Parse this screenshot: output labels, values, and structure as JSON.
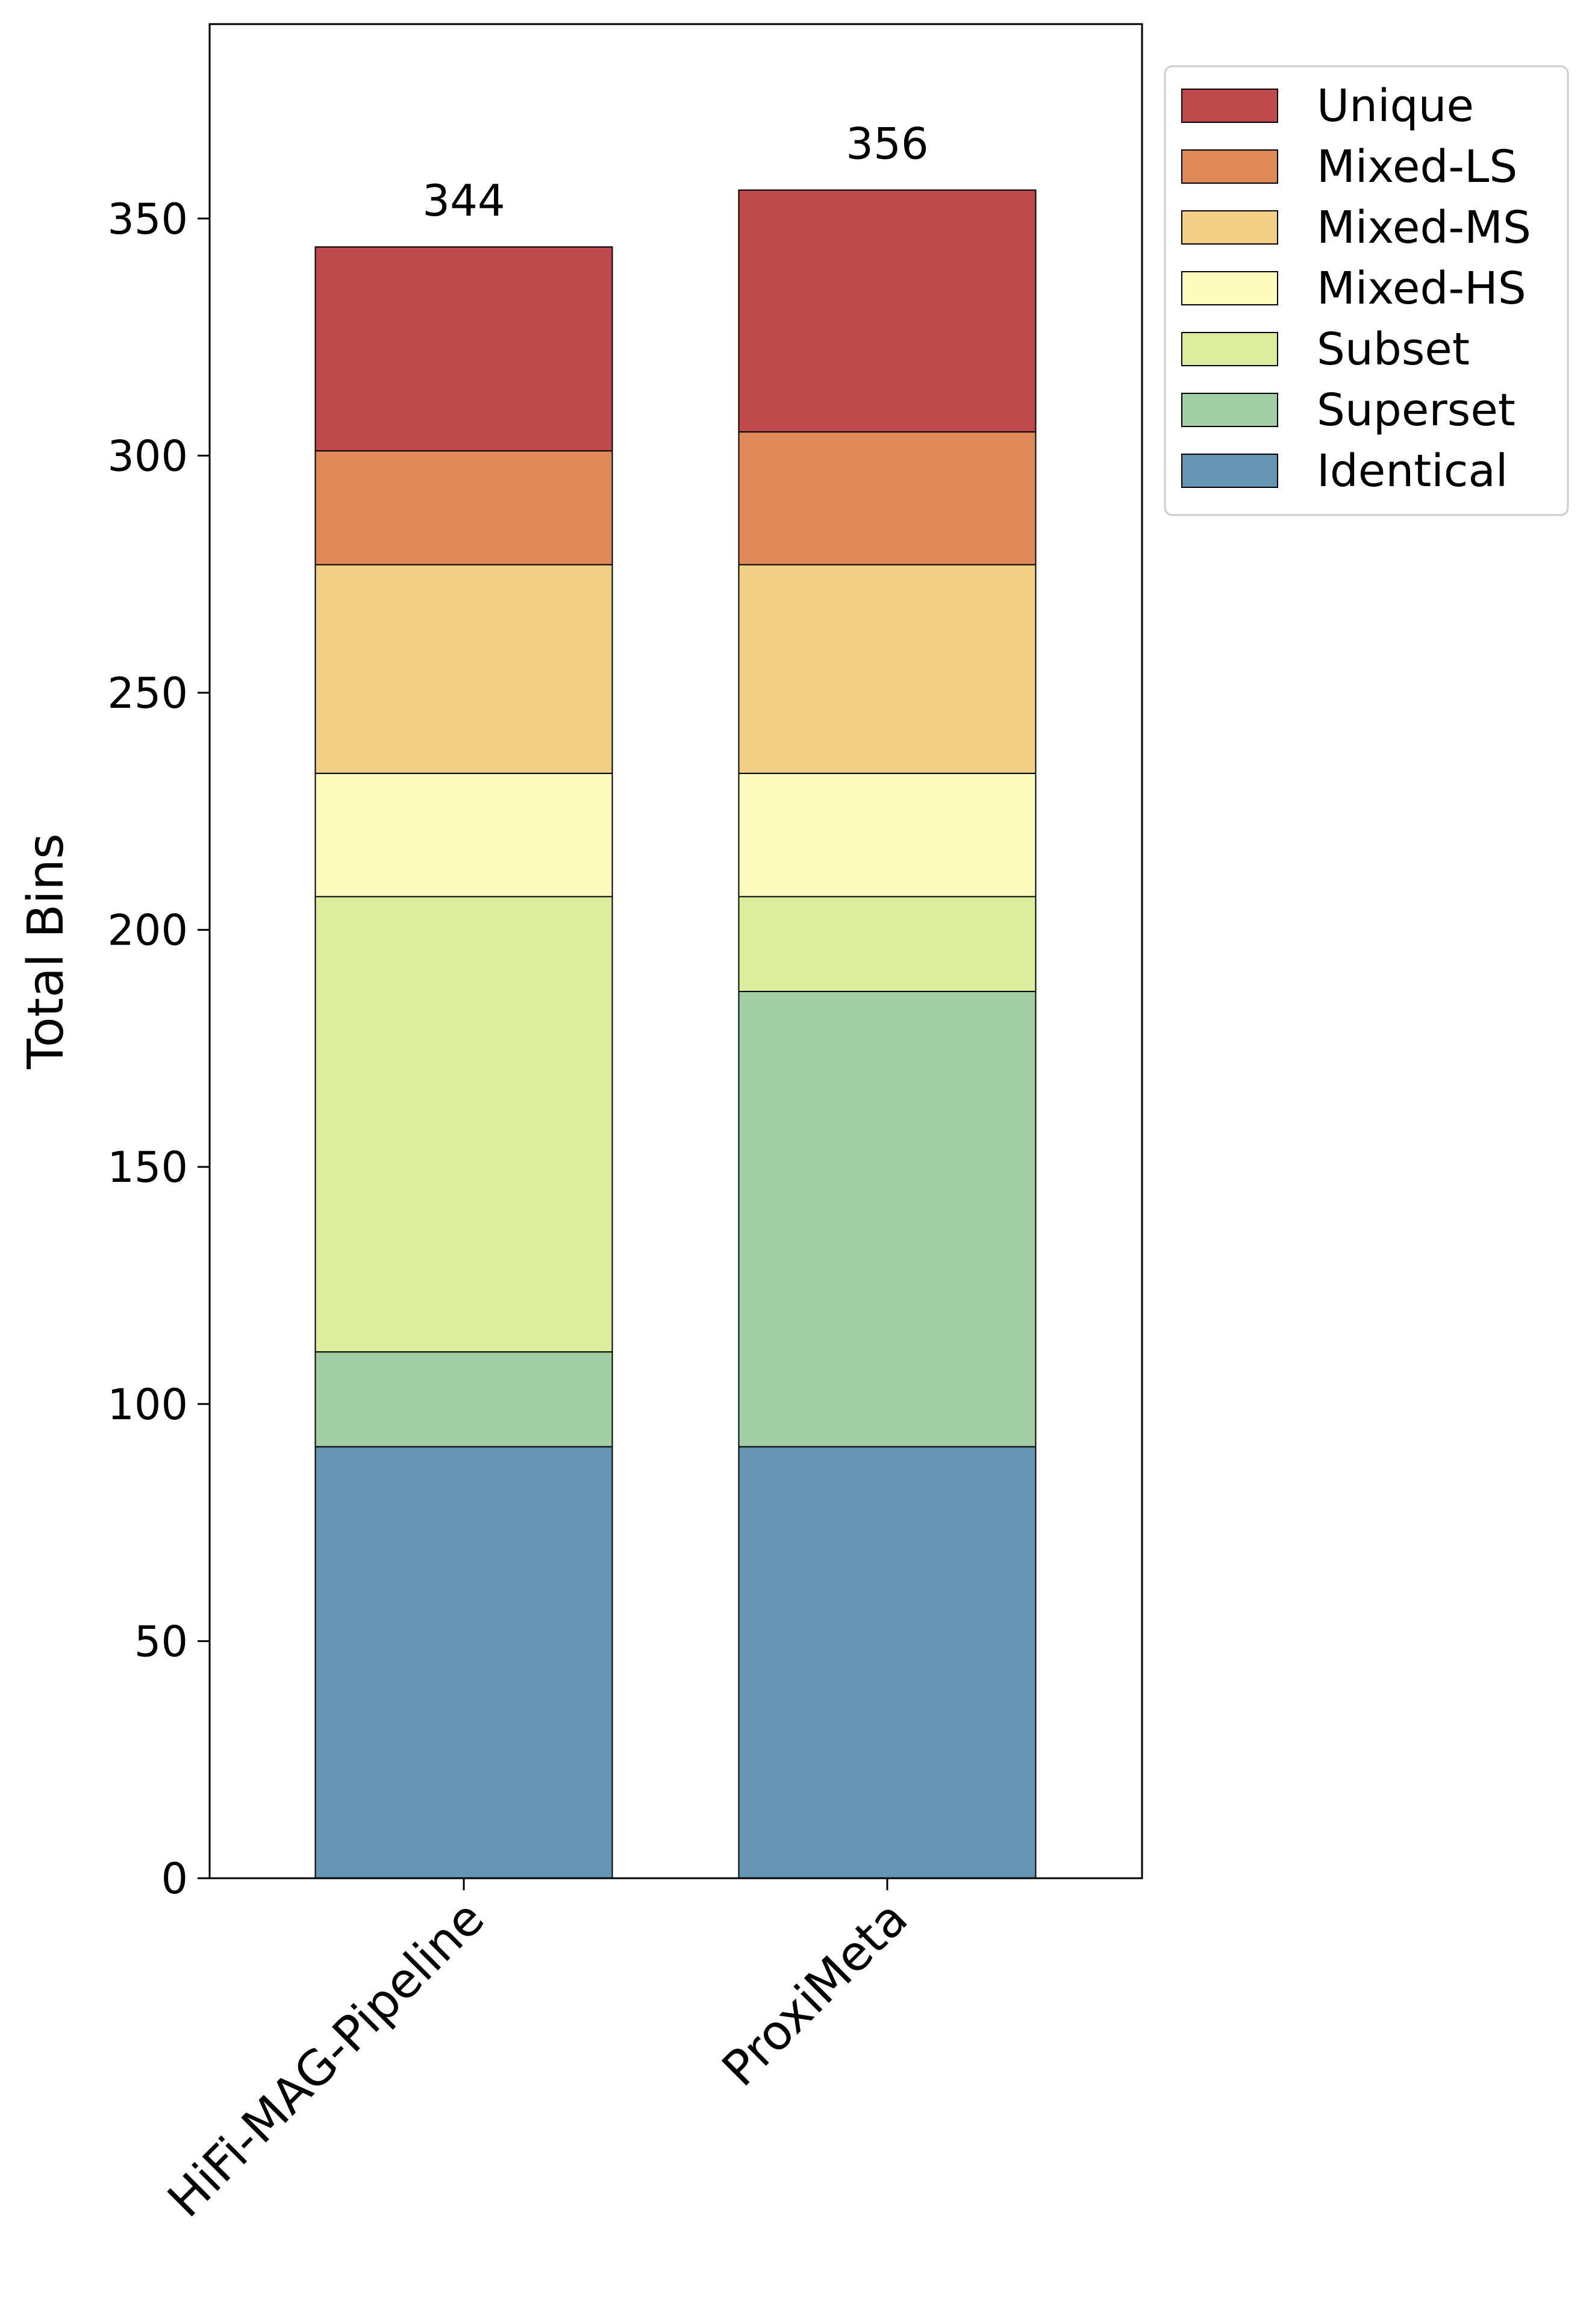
{
  "chart_data": {
    "type": "bar",
    "stacked": true,
    "categories": [
      "HiFi-MAG-Pipeline",
      "ProxiMeta"
    ],
    "series": [
      {
        "name": "Identical",
        "color": "#6496b4",
        "values": [
          91,
          91
        ]
      },
      {
        "name": "Superset",
        "color": "#a1cfa3",
        "values": [
          20,
          96
        ]
      },
      {
        "name": "Subset",
        "color": "#dcee9b",
        "values": [
          96,
          20
        ]
      },
      {
        "name": "Mixed-HS",
        "color": "#fdfcbe",
        "values": [
          26,
          26
        ]
      },
      {
        "name": "Mixed-MS",
        "color": "#f1d085",
        "values": [
          44,
          44
        ]
      },
      {
        "name": "Mixed-LS",
        "color": "#df8a56",
        "values": [
          24,
          28
        ]
      },
      {
        "name": "Unique",
        "color": "#c0494c",
        "values": [
          43,
          51
        ]
      }
    ],
    "totals": [
      "344",
      "356"
    ],
    "legend_order": [
      "Unique",
      "Mixed-LS",
      "Mixed-MS",
      "Mixed-HS",
      "Subset",
      "Superset",
      "Identical"
    ],
    "ylabel": "Total Bins",
    "xlabel": "",
    "ylim": [
      0,
      391
    ],
    "yticks": [
      0,
      50,
      100,
      150,
      200,
      250,
      300,
      350
    ],
    "grid": false,
    "legend_position": "outside-top-right"
  }
}
